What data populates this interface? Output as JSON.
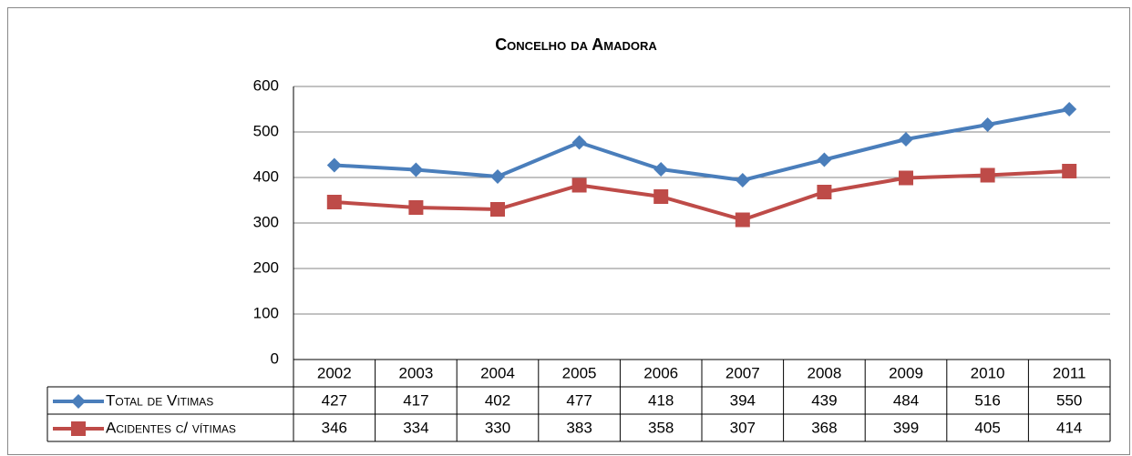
{
  "chart_data": {
    "type": "line",
    "title": "Concelho da Amadora",
    "categories": [
      "2002",
      "2003",
      "2004",
      "2005",
      "2006",
      "2007",
      "2008",
      "2009",
      "2010",
      "2011"
    ],
    "series": [
      {
        "name": "Total de Vitimas",
        "color": "#4a7ebb",
        "marker": "diamond",
        "values": [
          427,
          417,
          402,
          477,
          418,
          394,
          439,
          484,
          516,
          550
        ]
      },
      {
        "name": "Acidentes c/ vítimas",
        "color": "#be4b48",
        "marker": "square",
        "values": [
          346,
          334,
          330,
          383,
          358,
          307,
          368,
          399,
          405,
          414
        ]
      }
    ],
    "ylim": [
      0,
      600
    ],
    "yticks": [
      0,
      100,
      200,
      300,
      400,
      500,
      600
    ],
    "grid": true,
    "data_table": true
  }
}
